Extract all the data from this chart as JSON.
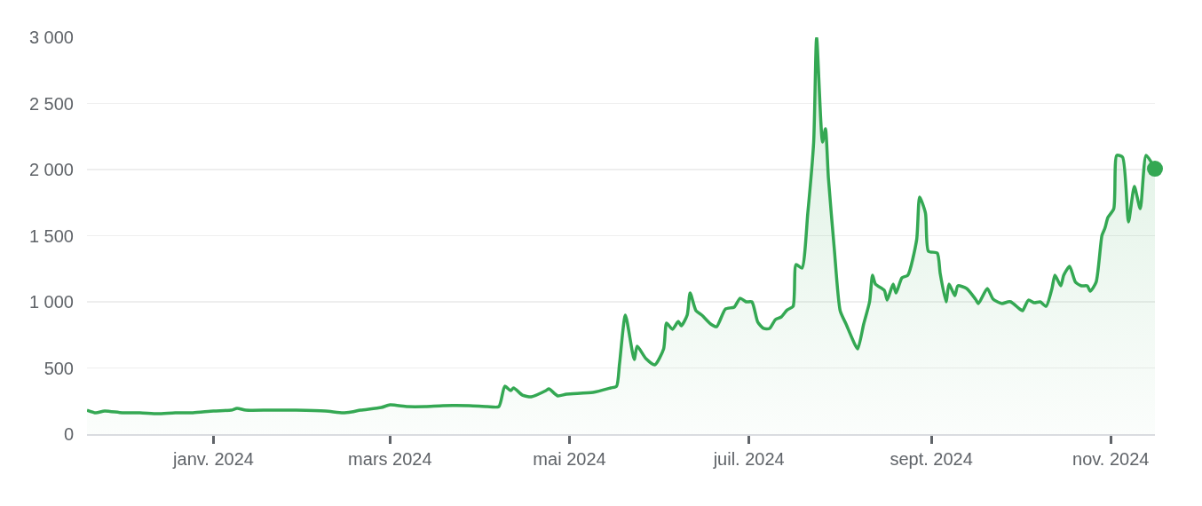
{
  "chart_data": {
    "type": "area",
    "x": [
      "2023-11-19",
      "2023-11-22",
      "2023-11-25",
      "2023-12-01",
      "2023-12-07",
      "2023-12-13",
      "2023-12-19",
      "2023-12-25",
      "2024-01-01",
      "2024-01-07",
      "2024-01-09",
      "2024-01-12",
      "2024-01-20",
      "2024-01-29",
      "2024-02-08",
      "2024-02-14",
      "2024-02-17",
      "2024-02-20",
      "2024-02-27",
      "2024-03-01",
      "2024-03-07",
      "2024-03-13",
      "2024-03-19",
      "2024-03-28",
      "2024-04-03",
      "2024-04-07",
      "2024-04-09",
      "2024-04-11",
      "2024-04-12",
      "2024-04-15",
      "2024-04-18",
      "2024-04-23",
      "2024-04-24",
      "2024-04-27",
      "2024-04-30",
      "2024-05-09",
      "2024-05-15",
      "2024-05-17",
      "2024-05-18",
      "2024-05-20",
      "2024-05-23",
      "2024-05-24",
      "2024-05-27",
      "2024-05-30",
      "2024-06-02",
      "2024-06-03",
      "2024-06-05",
      "2024-06-07",
      "2024-06-08",
      "2024-06-10",
      "2024-06-11",
      "2024-06-13",
      "2024-06-15",
      "2024-06-18",
      "2024-06-20",
      "2024-06-23",
      "2024-06-26",
      "2024-06-28",
      "2024-06-30",
      "2024-07-02",
      "2024-07-04",
      "2024-07-06",
      "2024-07-08",
      "2024-07-10",
      "2024-07-12",
      "2024-07-14",
      "2024-07-16",
      "2024-07-17",
      "2024-07-19",
      "2024-07-21",
      "2024-07-23",
      "2024-07-24",
      "2024-07-26",
      "2024-07-27",
      "2024-07-28",
      "2024-07-30",
      "2024-08-01",
      "2024-08-03",
      "2024-08-06",
      "2024-08-07",
      "2024-08-09",
      "2024-08-11",
      "2024-08-12",
      "2024-08-13",
      "2024-08-16",
      "2024-08-17",
      "2024-08-19",
      "2024-08-20",
      "2024-08-22",
      "2024-08-24",
      "2024-08-27",
      "2024-08-28",
      "2024-08-30",
      "2024-08-31",
      "2024-09-03",
      "2024-09-04",
      "2024-09-06",
      "2024-09-07",
      "2024-09-09",
      "2024-09-10",
      "2024-09-13",
      "2024-09-16",
      "2024-09-17",
      "2024-09-20",
      "2024-09-22",
      "2024-09-25",
      "2024-09-27",
      "2024-09-28",
      "2024-10-01",
      "2024-10-02",
      "2024-10-04",
      "2024-10-06",
      "2024-10-08",
      "2024-10-10",
      "2024-10-12",
      "2024-10-13",
      "2024-10-15",
      "2024-10-16",
      "2024-10-18",
      "2024-10-20",
      "2024-10-22",
      "2024-10-24",
      "2024-10-25",
      "2024-10-27",
      "2024-10-29",
      "2024-10-30",
      "2024-10-31",
      "2024-11-02",
      "2024-11-03",
      "2024-11-05",
      "2024-11-07",
      "2024-11-09",
      "2024-11-11",
      "2024-11-13",
      "2024-11-16"
    ],
    "series": [
      {
        "color": "#34a853",
        "values": [
          181,
          161,
          175,
          161,
          161,
          154,
          161,
          161,
          175,
          181,
          195,
          181,
          181,
          181,
          175,
          161,
          168,
          181,
          201,
          221,
          208,
          208,
          215,
          215,
          208,
          208,
          362,
          329,
          349,
          295,
          282,
          329,
          342,
          289,
          302,
          315,
          349,
          362,
          530,
          899,
          564,
          664,
          570,
          523,
          644,
          839,
          792,
          852,
          818,
          899,
          1067,
          933,
          899,
          832,
          812,
          946,
          960,
          1027,
          1000,
          1000,
          846,
          799,
          799,
          866,
          886,
          939,
          966,
          1282,
          1255,
          1671,
          2208,
          3000,
          2208,
          2308,
          1939,
          1402,
          933,
          832,
          678,
          644,
          832,
          1000,
          1201,
          1134,
          1087,
          1013,
          1134,
          1067,
          1181,
          1201,
          1469,
          1792,
          1671,
          1382,
          1369,
          1215,
          1000,
          1134,
          1047,
          1121,
          1101,
          1020,
          987,
          1101,
          1020,
          987,
          1000,
          1000,
          946,
          933,
          1013,
          993,
          1000,
          966,
          1101,
          1201,
          1121,
          1201,
          1268,
          1148,
          1121,
          1121,
          1080,
          1148,
          1503,
          1557,
          1637,
          1704,
          2107,
          2094,
          1604,
          1872,
          1704,
          2107,
          2006
        ]
      },
      {
        "type": "scatter",
        "color": "#34a853",
        "x": [
          "2024-11-16"
        ],
        "values": [
          2006
        ]
      }
    ],
    "xlim": [
      "2023-11-19",
      "2024-11-16"
    ],
    "xticks": [
      {
        "value": "2024-01-01",
        "label": "janv. 2024"
      },
      {
        "value": "2024-03-01",
        "label": "mars 2024"
      },
      {
        "value": "2024-05-01",
        "label": "mai 2024"
      },
      {
        "value": "2024-07-01",
        "label": "juil. 2024"
      },
      {
        "value": "2024-09-01",
        "label": "sept. 2024"
      },
      {
        "value": "2024-11-01",
        "label": "nov. 2024"
      }
    ],
    "ylim": [
      0,
      3000
    ],
    "yticks": [
      0,
      500,
      {
        "value": 1000,
        "label": "1 000"
      },
      {
        "value": 1500,
        "label": "1 500"
      },
      {
        "value": 2000,
        "label": "2 000"
      },
      {
        "value": 2500,
        "label": "2 500"
      },
      {
        "value": 3000,
        "label": "3 000"
      }
    ],
    "grid": "y"
  }
}
